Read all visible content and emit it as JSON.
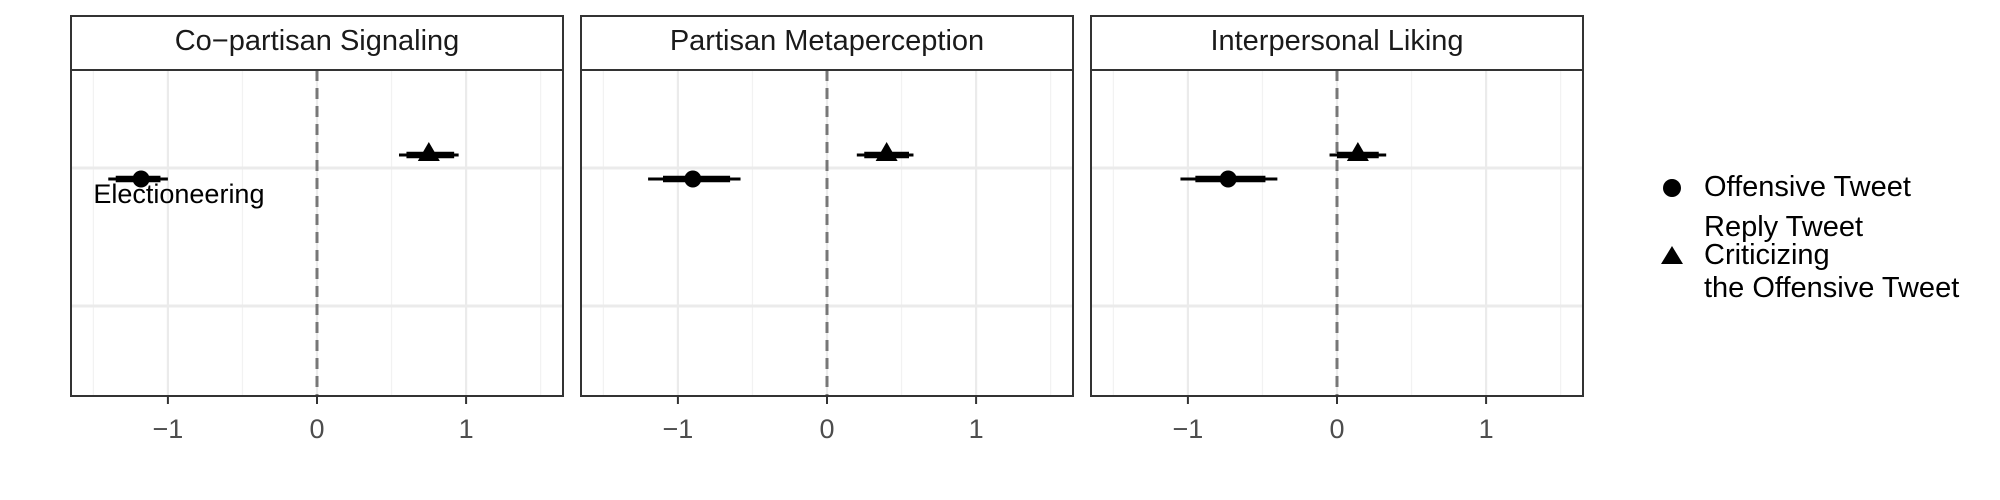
{
  "chart_data": {
    "type": "scatter",
    "x_ticks": [
      -1,
      0,
      1
    ],
    "x_tick_labels": [
      "−1",
      "0",
      "1"
    ],
    "xlim": [
      -1.65,
      1.65
    ],
    "y_levels": 2,
    "reference_line_x": 0,
    "grid": true,
    "legend_position": "right",
    "legend": [
      {
        "label_lines": [
          "Offensive Tweet"
        ],
        "shape": "circle"
      },
      {
        "label_lines": [
          "Reply Tweet",
          "Criticizing",
          "the Offensive Tweet"
        ],
        "shape": "triangle"
      }
    ],
    "panels": [
      {
        "title": "Co−partisan Signaling",
        "annotation": "Electioneering",
        "points": [
          {
            "series": "Offensive Tweet",
            "shape": "circle",
            "estimate": -1.18,
            "ci_inner": [
              -1.35,
              -1.05
            ],
            "ci_outer": [
              -1.4,
              -1.0
            ]
          },
          {
            "series": "Reply Tweet Criticizing the Offensive Tweet",
            "shape": "triangle",
            "estimate": 0.75,
            "ci_inner": [
              0.6,
              0.92
            ],
            "ci_outer": [
              0.55,
              0.95
            ]
          }
        ]
      },
      {
        "title": "Partisan Metaperception",
        "annotation": "",
        "points": [
          {
            "series": "Offensive Tweet",
            "shape": "circle",
            "estimate": -0.9,
            "ci_inner": [
              -1.1,
              -0.65
            ],
            "ci_outer": [
              -1.2,
              -0.58
            ]
          },
          {
            "series": "Reply Tweet Criticizing the Offensive Tweet",
            "shape": "triangle",
            "estimate": 0.4,
            "ci_inner": [
              0.25,
              0.55
            ],
            "ci_outer": [
              0.2,
              0.58
            ]
          }
        ]
      },
      {
        "title": "Interpersonal Liking",
        "annotation": "",
        "points": [
          {
            "series": "Offensive Tweet",
            "shape": "circle",
            "estimate": -0.73,
            "ci_inner": [
              -0.95,
              -0.48
            ],
            "ci_outer": [
              -1.05,
              -0.4
            ]
          },
          {
            "series": "Reply Tweet Criticizing the Offensive Tweet",
            "shape": "triangle",
            "estimate": 0.14,
            "ci_inner": [
              0.0,
              0.28
            ],
            "ci_outer": [
              -0.05,
              0.33
            ]
          }
        ]
      }
    ]
  }
}
